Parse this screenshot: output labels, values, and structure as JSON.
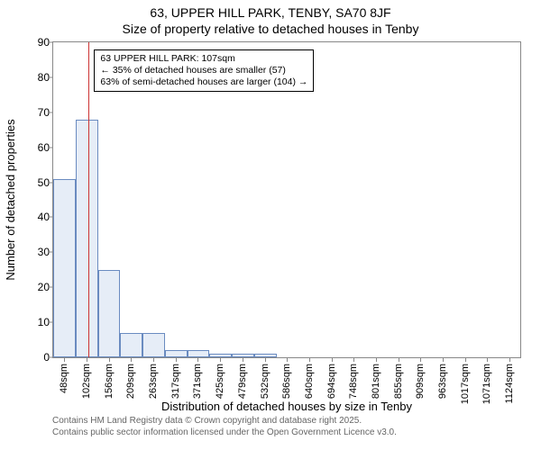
{
  "title_line1": "63, UPPER HILL PARK, TENBY, SA70 8JF",
  "title_line2": "Size of property relative to detached houses in Tenby",
  "ylabel": "Number of detached properties",
  "xlabel": "Distribution of detached houses by size in Tenby",
  "footer_line1": "Contains HM Land Registry data © Crown copyright and database right 2025.",
  "footer_line2": "Contains public sector information licensed under the Open Government Licence v3.0.",
  "chart": {
    "type": "histogram",
    "x_min": 21,
    "x_max": 1151,
    "ylim": [
      0,
      90
    ],
    "ytick_step": 10,
    "yticks": [
      0,
      10,
      20,
      30,
      40,
      50,
      60,
      70,
      80,
      90
    ],
    "xtick_step": 53.85,
    "xtick_labels": [
      "48sqm",
      "102sqm",
      "156sqm",
      "209sqm",
      "263sqm",
      "317sqm",
      "371sqm",
      "425sqm",
      "479sqm",
      "532sqm",
      "586sqm",
      "640sqm",
      "694sqm",
      "748sqm",
      "801sqm",
      "855sqm",
      "909sqm",
      "963sqm",
      "1017sqm",
      "1071sqm",
      "1124sqm"
    ],
    "bars": [
      {
        "x": 21,
        "w": 54,
        "value": 51
      },
      {
        "x": 75,
        "w": 54,
        "value": 68
      },
      {
        "x": 129,
        "w": 54,
        "value": 25
      },
      {
        "x": 183,
        "w": 54,
        "value": 7
      },
      {
        "x": 237,
        "w": 54,
        "value": 7
      },
      {
        "x": 291,
        "w": 54,
        "value": 2
      },
      {
        "x": 345,
        "w": 54,
        "value": 2
      },
      {
        "x": 399,
        "w": 54,
        "value": 1
      },
      {
        "x": 453,
        "w": 54,
        "value": 1
      },
      {
        "x": 507,
        "w": 54,
        "value": 1
      }
    ],
    "bar_fill": "#e6edf7",
    "bar_stroke": "#6a8bc0",
    "marker_value": 107,
    "marker_color": "#cc3333",
    "plot_border": "#888888",
    "background": "#ffffff",
    "annotation": {
      "line1": "63 UPPER HILL PARK: 107sqm",
      "line2": "← 35% of detached houses are smaller (57)",
      "line3": "63% of semi-detached houses are larger (104) →",
      "box_border": "#000000",
      "box_bg": "#ffffff",
      "fontsize": 10.5
    }
  }
}
